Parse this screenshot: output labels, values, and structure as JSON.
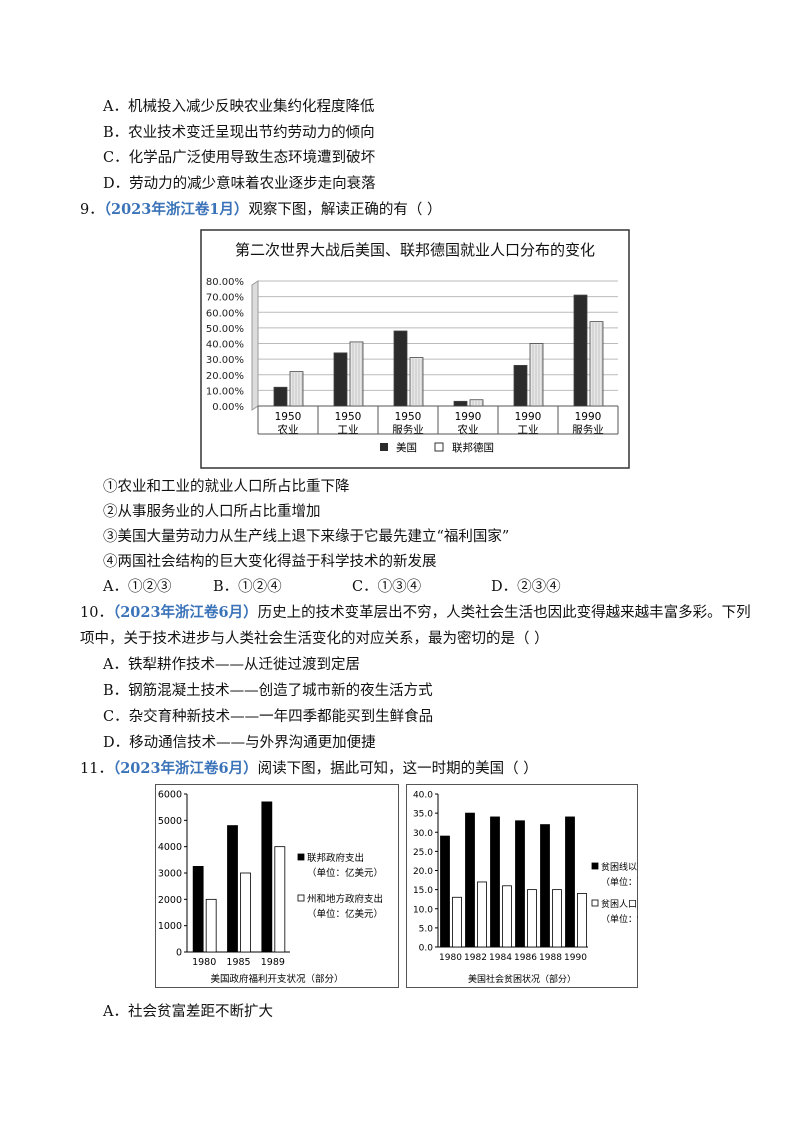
{
  "q8_options": [
    "A．机械投入减少反映农业集约化程度降低",
    "B．农业技术变迁呈现出节约劳动力的倾向",
    "C．化学品广泛使用导致生态环境遭到破坏",
    "D．劳动力的减少意味着农业逐步走向衰落"
  ],
  "q9": {
    "number": "9．",
    "source": "（2023年浙江卷1月）",
    "stem": "观察下图，解读正确的有（    ）",
    "statements": [
      "①农业和工业的就业人口所占比重下降",
      "②从事服务业的人口所占比重增加",
      "③美国大量劳动力从生产线上退下来缘于它最先建立“福利国家”",
      "④两国社会结构的巨大变化得益于科学技术的新发展"
    ],
    "choices": [
      "A．①②③",
      "B．①②④",
      "C．①③④",
      "D．②③④"
    ]
  },
  "q10": {
    "number": "10．",
    "source": "（2023年浙江卷6月）",
    "stem_line1": "历史上的技术变革层出不穷，人类社会生活也因此变得越来越丰富多彩。下列",
    "stem_line2": "项中，关于技术进步与人类社会生活变化的对应关系，最为密切的是（    ）",
    "options": [
      "A．铁犁耕作技术——从迁徙过渡到定居",
      "B．钢筋混凝土技术——创造了城市新的夜生活方式",
      "C．杂交育种新技术——一年四季都能买到生鲜食品",
      "D．移动通信技术——与外界沟通更加便捷"
    ]
  },
  "q11": {
    "number": "11．",
    "source": "（2023年浙江卷6月）",
    "stem": "阅读下图，据此可知，这一时期的美国（    ）",
    "option_a": "A．社会贫富差距不断扩大"
  },
  "chart_data": [
    {
      "type": "bar",
      "title": "第二次世界大战后美国、联邦德国就业人口分布的变化",
      "categories": [
        [
          "1950",
          "农业"
        ],
        [
          "1950",
          "工业"
        ],
        [
          "1950",
          "服务业"
        ],
        [
          "1990",
          "农业"
        ],
        [
          "1990",
          "工业"
        ],
        [
          "1990",
          "服务业"
        ]
      ],
      "series": [
        {
          "name": "美国",
          "values": [
            12,
            34,
            48,
            3,
            26,
            71
          ],
          "color": "#2a2a2a"
        },
        {
          "name": "联邦德国",
          "values": [
            22,
            41,
            31,
            4,
            40,
            54
          ],
          "color": "#e4e4e4"
        }
      ],
      "yticks": [
        "0.00%",
        "10.00%",
        "20.00%",
        "30.00%",
        "40.00%",
        "50.00%",
        "60.00%",
        "70.00%",
        "80.00%"
      ],
      "ylim": [
        0,
        80
      ],
      "grid": true,
      "legend": "bottom"
    },
    {
      "type": "bar",
      "caption": "美国政府福利开支状况（部分）",
      "categories": [
        "1980",
        "1985",
        "1989"
      ],
      "series": [
        {
          "name": "联邦政府支出",
          "unit": "（单位：亿美元）",
          "values": [
            3250,
            4800,
            5700
          ],
          "color": "#000000"
        },
        {
          "name": "州和地方政府支出",
          "unit": "（单位：亿美元）",
          "values": [
            2000,
            3000,
            4000
          ],
          "color": "#ffffff"
        }
      ],
      "yticks": [
        "0",
        "1000",
        "2000",
        "3000",
        "4000",
        "5000",
        "6000"
      ],
      "ylim": [
        0,
        6000
      ],
      "legend": "right"
    },
    {
      "type": "bar",
      "caption": "美国社会贫困状况（部分）",
      "categories": [
        "1980",
        "1982",
        "1984",
        "1986",
        "1988",
        "1990"
      ],
      "series": [
        {
          "name": "贫困线以下人数",
          "unit": "（单位：百万）",
          "values": [
            29,
            35,
            34,
            33,
            32,
            34
          ],
          "color": "#000000"
        },
        {
          "name": "贫困人口比例",
          "unit": "（单位：%）",
          "values": [
            13,
            17,
            16,
            15,
            15,
            14
          ],
          "color": "#ffffff"
        }
      ],
      "yticks": [
        "0.0",
        "5.0",
        "10.0",
        "15.0",
        "20.0",
        "25.0",
        "30.0",
        "35.0",
        "40.0"
      ],
      "ylim": [
        0,
        40
      ],
      "legend": "right"
    }
  ]
}
